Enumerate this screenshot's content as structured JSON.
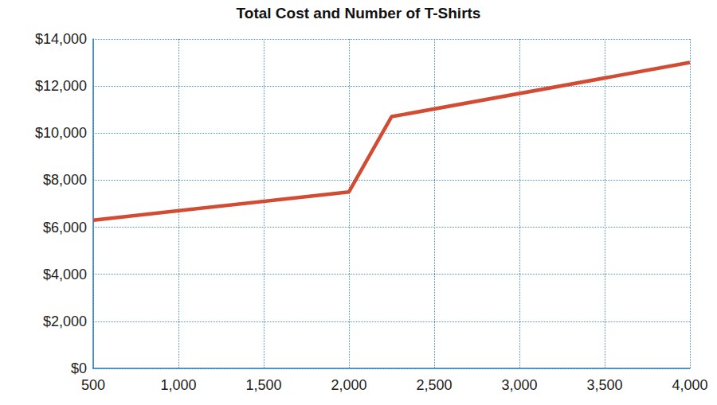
{
  "chart_data": {
    "type": "line",
    "title": "Total Cost and Number of T-Shirts",
    "x": [
      500,
      2000,
      2250,
      4000
    ],
    "values": [
      6300,
      7500,
      10700,
      13000
    ],
    "color": "#d24b33",
    "marker": "none",
    "line_style": "solid",
    "xlim": [
      500,
      4000
    ],
    "xticks": [
      500,
      {
        "value": 1000,
        "label": "1,000"
      },
      {
        "value": 1500,
        "label": "1,500"
      },
      {
        "value": 2000,
        "label": "2,000"
      },
      {
        "value": 2500,
        "label": "2,500"
      },
      {
        "value": 3000,
        "label": "3,000"
      },
      {
        "value": 3500,
        "label": "3,500"
      },
      {
        "value": 4000,
        "label": "4,000"
      }
    ],
    "ylim": [
      0,
      14000
    ],
    "yticks": [
      {
        "value": 0,
        "label": "$0"
      },
      {
        "value": 2000,
        "label": "$2,000"
      },
      {
        "value": 4000,
        "label": "$4,000"
      },
      {
        "value": 6000,
        "label": "$6,000"
      },
      {
        "value": 8000,
        "label": "$8,000"
      },
      {
        "value": 10000,
        "label": "$10,000"
      },
      {
        "value": 12000,
        "label": "$12,000"
      },
      {
        "value": 14000,
        "label": "$14,000"
      }
    ],
    "grid": true
  }
}
